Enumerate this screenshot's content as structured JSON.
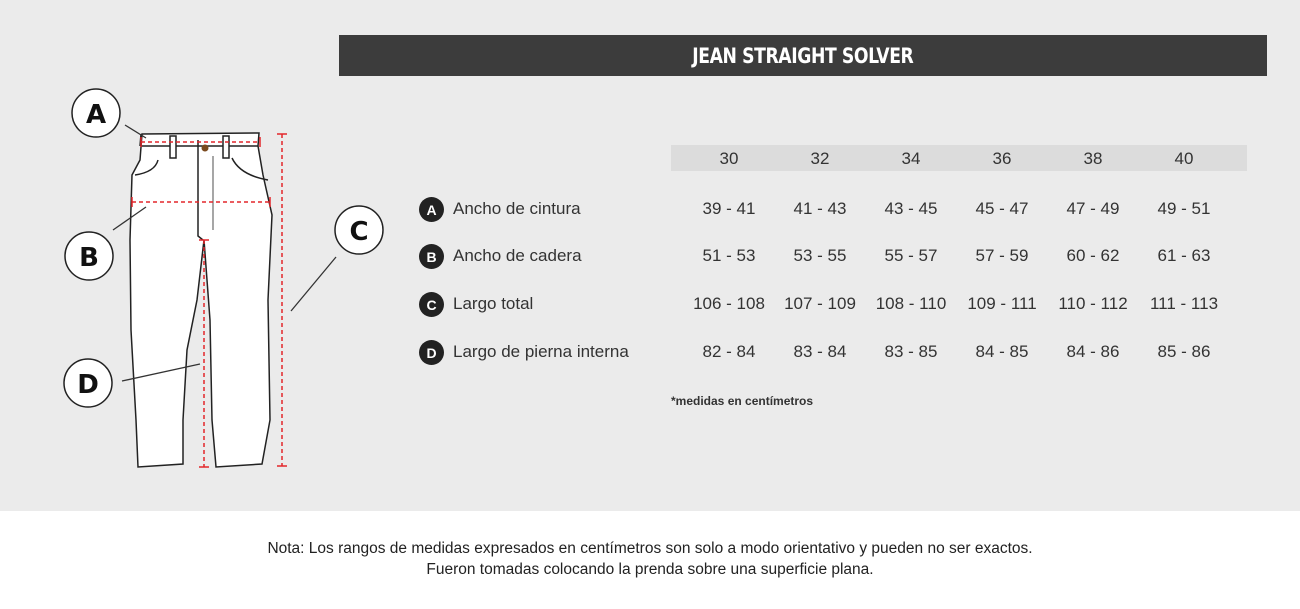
{
  "title": "JEAN STRAIGHT SOLVER",
  "diagram": {
    "letters": [
      "A",
      "B",
      "C",
      "D"
    ],
    "measure_line_color": "#e3262b"
  },
  "table": {
    "sizes": [
      "30",
      "32",
      "34",
      "36",
      "38",
      "40"
    ],
    "rows": [
      {
        "letter": "A",
        "label": "Ancho de cintura",
        "values": [
          "39 - 41",
          "41 - 43",
          "43 - 45",
          "45 - 47",
          "47 - 49",
          "49 - 51"
        ]
      },
      {
        "letter": "B",
        "label": "Ancho de cadera",
        "values": [
          "51 - 53",
          "53 - 55",
          "55 - 57",
          "57 - 59",
          "60 - 62",
          "61 - 63"
        ]
      },
      {
        "letter": "C",
        "label": "Largo total",
        "values": [
          "106 - 108",
          "107 - 109",
          "108 - 110",
          "109 - 111",
          "110 - 112",
          "111 - 113"
        ]
      },
      {
        "letter": "D",
        "label": "Largo de pierna interna",
        "values": [
          "82 - 84",
          "83 - 84",
          "83 - 85",
          "84 - 85",
          "84 - 86",
          "85 - 86"
        ]
      }
    ],
    "footnote": "*medidas en centímetros"
  },
  "note": {
    "line1": "Nota: Los rangos de medidas expresados en centímetros son solo a modo orientativo y pueden no ser exactos.",
    "line2": "Fueron tomadas colocando la prenda sobre una superficie plana."
  }
}
